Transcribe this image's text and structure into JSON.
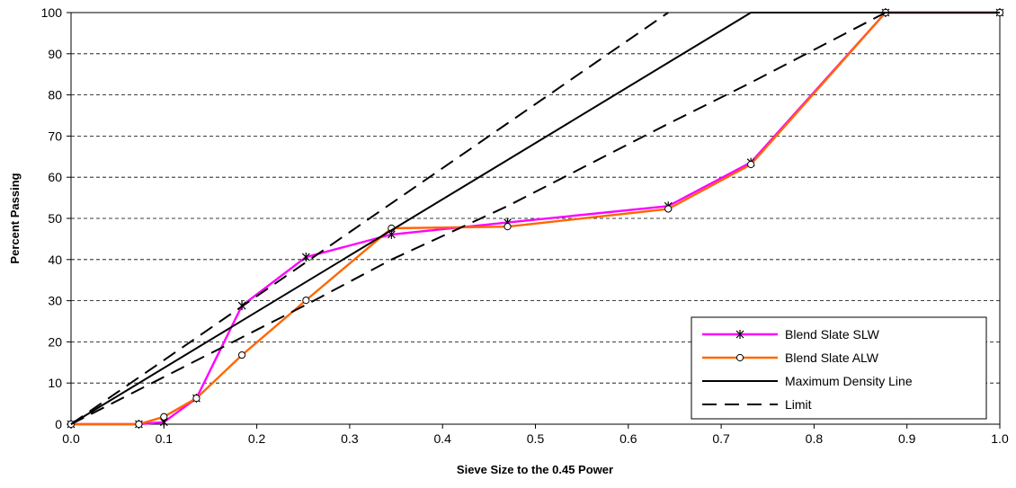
{
  "chart_data": {
    "type": "line",
    "xlabel": "Sieve Size to the 0.45 Power",
    "ylabel": "Percent Passing",
    "xlim": [
      0.0,
      1.0
    ],
    "ylim": [
      0,
      100
    ],
    "xticks": [
      "0.0",
      "0.1",
      "0.2",
      "0.3",
      "0.4",
      "0.5",
      "0.6",
      "0.7",
      "0.8",
      "0.9",
      "1.0"
    ],
    "yticks": [
      "0",
      "10",
      "20",
      "30",
      "40",
      "50",
      "60",
      "70",
      "80",
      "90",
      "100"
    ],
    "grid": "horizontal dashed",
    "legend_position": "bottom-right",
    "series": [
      {
        "name": "Blend Slate SLW",
        "color": "#ff00ff",
        "marker": "asterisk",
        "line": "solid",
        "x": [
          0.0,
          0.073,
          0.1,
          0.135,
          0.184,
          0.253,
          0.345,
          0.47,
          0.643,
          0.732,
          0.877,
          1.0
        ],
        "y": [
          0,
          0,
          0.5,
          6.3,
          28.8,
          40.6,
          46.1,
          49.0,
          53.0,
          63.6,
          100,
          100
        ]
      },
      {
        "name": "Blend Slate ALW",
        "color": "#ff6600",
        "marker": "circle",
        "line": "solid",
        "x": [
          0.0,
          0.073,
          0.1,
          0.135,
          0.184,
          0.253,
          0.345,
          0.47,
          0.643,
          0.732,
          0.877,
          1.0
        ],
        "y": [
          0,
          0,
          1.8,
          6.3,
          16.8,
          30.1,
          47.6,
          48.0,
          52.3,
          63.1,
          100,
          100
        ]
      },
      {
        "name": "Maximum Density Line",
        "color": "#000000",
        "marker": "none",
        "line": "solid",
        "x": [
          0.0,
          0.732,
          1.0
        ],
        "y": [
          0,
          100,
          100
        ]
      },
      {
        "name": "Limit",
        "color": "#000000",
        "marker": "none",
        "line": "dashed",
        "x": [
          0.0,
          0.643
        ],
        "y": [
          0,
          100
        ]
      },
      {
        "name": "",
        "color": "#000000",
        "marker": "none",
        "line": "dashed",
        "x": [
          0.0,
          0.253,
          0.345,
          0.47,
          0.643,
          0.732,
          0.877
        ],
        "y": [
          0,
          29.0,
          40.0,
          53.0,
          73.0,
          83.0,
          100
        ]
      }
    ],
    "legend": [
      "Blend Slate SLW",
      "Blend Slate ALW",
      "Maximum Density Line",
      "Limit"
    ]
  }
}
